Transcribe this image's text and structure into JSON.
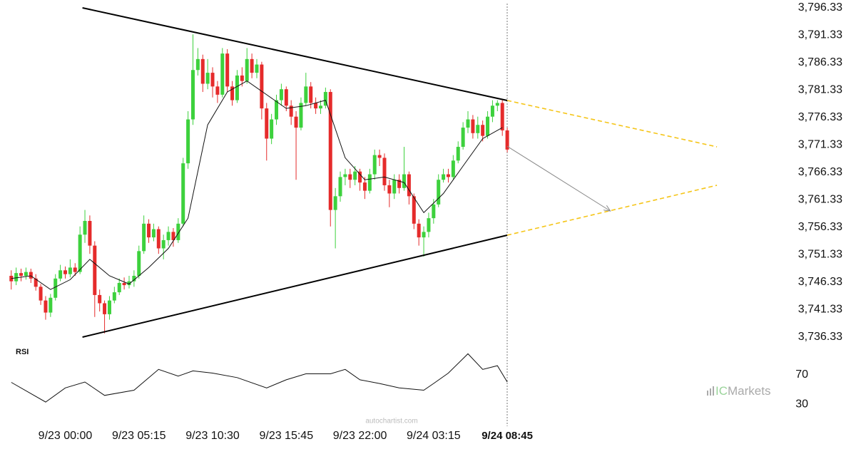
{
  "chart_data": {
    "type": "candlestick",
    "up_color": "#3dd13d",
    "down_color": "#e52b2b",
    "ylim": [
      3736.33,
      3796.33
    ],
    "yticks": [
      {
        "value": 3736.33,
        "label": "3,736.33"
      },
      {
        "value": 3741.33,
        "label": "3,741.33"
      },
      {
        "value": 3746.33,
        "label": "3,746.33"
      },
      {
        "value": 3751.33,
        "label": "3,751.33"
      },
      {
        "value": 3756.33,
        "label": "3,756.33"
      },
      {
        "value": 3761.33,
        "label": "3,761.33"
      },
      {
        "value": 3766.33,
        "label": "3,766.33"
      },
      {
        "value": 3771.33,
        "label": "3,771.33"
      },
      {
        "value": 3776.33,
        "label": "3,776.33"
      },
      {
        "value": 3781.33,
        "label": "3,781.33"
      },
      {
        "value": 3786.33,
        "label": "3,786.33"
      },
      {
        "value": 3791.33,
        "label": "3,791.33"
      },
      {
        "value": 3796.33,
        "label": "3,796.33"
      }
    ],
    "xlim": [
      -2,
      145
    ],
    "xticks": [
      {
        "value": 11,
        "label": "9/23 00:00"
      },
      {
        "value": 26,
        "label": "9/23 05:15"
      },
      {
        "value": 41,
        "label": "9/23 10:30"
      },
      {
        "value": 56,
        "label": "9/23 15:45"
      },
      {
        "value": 71,
        "label": "9/23 22:00"
      },
      {
        "value": 86,
        "label": "9/24 03:15"
      },
      {
        "value": 101,
        "label": "9/24 08:45"
      }
    ],
    "candles": [
      [
        3747.5,
        3748.5,
        3745.0,
        3746.5
      ],
      [
        3746.5,
        3749.0,
        3745.8,
        3748.0
      ],
      [
        3748.0,
        3748.8,
        3746.5,
        3747.5
      ],
      [
        3747.5,
        3749.0,
        3746.8,
        3748.2
      ],
      [
        3748.2,
        3748.8,
        3746.2,
        3747.0
      ],
      [
        3747.0,
        3747.8,
        3744.8,
        3745.5
      ],
      [
        3745.5,
        3746.0,
        3742.2,
        3743.0
      ],
      [
        3743.0,
        3743.8,
        3739.5,
        3740.8
      ],
      [
        3740.8,
        3744.2,
        3740.0,
        3743.5
      ],
      [
        3743.5,
        3747.8,
        3743.0,
        3747.0
      ],
      [
        3747.0,
        3749.5,
        3746.5,
        3748.5
      ],
      [
        3748.5,
        3749.2,
        3747.0,
        3747.8
      ],
      [
        3747.8,
        3750.5,
        3747.2,
        3749.0
      ],
      [
        3749.0,
        3749.8,
        3747.5,
        3748.2
      ],
      [
        3748.2,
        3756.5,
        3747.8,
        3755.0
      ],
      [
        3755.0,
        3759.5,
        3753.5,
        3757.5
      ],
      [
        3757.5,
        3758.5,
        3751.5,
        3753.0
      ],
      [
        3753.0,
        3753.8,
        3740.0,
        3744.0
      ],
      [
        3744.0,
        3745.0,
        3741.0,
        3742.5
      ],
      [
        3742.5,
        3743.0,
        3737.0,
        3740.5
      ],
      [
        3740.5,
        3743.8,
        3739.5,
        3743.0
      ],
      [
        3743.0,
        3745.5,
        3742.5,
        3744.5
      ],
      [
        3744.5,
        3747.0,
        3744.0,
        3746.2
      ],
      [
        3746.2,
        3747.2,
        3745.0,
        3745.8
      ],
      [
        3745.8,
        3747.5,
        3745.2,
        3746.5
      ],
      [
        3746.5,
        3748.5,
        3745.5,
        3747.5
      ],
      [
        3747.5,
        3753.0,
        3747.0,
        3752.0
      ],
      [
        3752.0,
        3758.5,
        3751.5,
        3757.0
      ],
      [
        3757.0,
        3757.8,
        3753.5,
        3754.5
      ],
      [
        3754.5,
        3757.0,
        3753.8,
        3756.0
      ],
      [
        3756.0,
        3756.5,
        3751.5,
        3752.5
      ],
      [
        3752.5,
        3755.0,
        3750.5,
        3754.0
      ],
      [
        3754.0,
        3756.5,
        3753.0,
        3755.5
      ],
      [
        3755.5,
        3756.2,
        3752.8,
        3754.0
      ],
      [
        3754.0,
        3758.0,
        3753.5,
        3757.0
      ],
      [
        3757.0,
        3769.0,
        3756.5,
        3768.0
      ],
      [
        3768.0,
        3777.5,
        3767.0,
        3776.0
      ],
      [
        3776.0,
        3791.5,
        3775.0,
        3785.0
      ],
      [
        3785.0,
        3789.0,
        3784.0,
        3787.0
      ],
      [
        3787.0,
        3787.8,
        3781.0,
        3782.5
      ],
      [
        3782.5,
        3787.0,
        3781.5,
        3784.5
      ],
      [
        3784.5,
        3785.5,
        3780.0,
        3782.0
      ],
      [
        3782.0,
        3783.0,
        3779.0,
        3780.5
      ],
      [
        3780.5,
        3789.0,
        3780.0,
        3788.0
      ],
      [
        3788.0,
        3788.8,
        3781.0,
        3782.0
      ],
      [
        3782.0,
        3783.0,
        3778.5,
        3779.5
      ],
      [
        3779.5,
        3785.0,
        3779.0,
        3784.0
      ],
      [
        3784.0,
        3785.5,
        3782.0,
        3783.0
      ],
      [
        3783.0,
        3789.0,
        3782.5,
        3787.0
      ],
      [
        3787.0,
        3788.0,
        3783.5,
        3784.5
      ],
      [
        3784.5,
        3787.0,
        3783.5,
        3786.0
      ],
      [
        3786.0,
        3786.5,
        3776.0,
        3778.0
      ],
      [
        3778.0,
        3779.0,
        3768.5,
        3772.5
      ],
      [
        3772.5,
        3777.0,
        3771.5,
        3776.0
      ],
      [
        3776.0,
        3780.5,
        3775.0,
        3779.5
      ],
      [
        3779.5,
        3782.5,
        3778.5,
        3781.5
      ],
      [
        3781.5,
        3782.0,
        3777.5,
        3778.5
      ],
      [
        3778.5,
        3779.5,
        3775.0,
        3776.5
      ],
      [
        3776.5,
        3777.5,
        3765.0,
        3774.5
      ],
      [
        3774.5,
        3780.0,
        3774.0,
        3779.0
      ],
      [
        3779.0,
        3784.5,
        3778.5,
        3782.0
      ],
      [
        3782.0,
        3782.8,
        3778.0,
        3779.0
      ],
      [
        3779.0,
        3780.0,
        3777.0,
        3778.0
      ],
      [
        3778.0,
        3779.5,
        3777.0,
        3778.5
      ],
      [
        3778.5,
        3781.8,
        3778.0,
        3781.0
      ],
      [
        3781.0,
        3781.5,
        3756.5,
        3759.5
      ],
      [
        3759.5,
        3763.5,
        3752.5,
        3762.0
      ],
      [
        3762.0,
        3766.5,
        3761.0,
        3765.5
      ],
      [
        3765.5,
        3767.0,
        3764.0,
        3766.0
      ],
      [
        3766.0,
        3767.0,
        3763.5,
        3765.0
      ],
      [
        3765.0,
        3767.5,
        3764.0,
        3766.5
      ],
      [
        3766.5,
        3767.0,
        3763.0,
        3764.5
      ],
      [
        3764.5,
        3765.5,
        3761.5,
        3763.0
      ],
      [
        3763.0,
        3767.0,
        3762.5,
        3766.0
      ],
      [
        3766.0,
        3770.5,
        3765.0,
        3769.5
      ],
      [
        3769.5,
        3770.5,
        3767.5,
        3769.0
      ],
      [
        3769.0,
        3769.8,
        3763.0,
        3764.0
      ],
      [
        3764.0,
        3765.0,
        3760.0,
        3762.5
      ],
      [
        3762.5,
        3766.0,
        3761.5,
        3765.0
      ],
      [
        3765.0,
        3766.0,
        3762.5,
        3763.5
      ],
      [
        3763.5,
        3771.0,
        3763.0,
        3766.0
      ],
      [
        3766.0,
        3766.5,
        3760.5,
        3762.0
      ],
      [
        3762.0,
        3762.5,
        3756.0,
        3757.0
      ],
      [
        3757.0,
        3757.8,
        3753.0,
        3754.5
      ],
      [
        3754.5,
        3756.5,
        3751.0,
        3755.5
      ],
      [
        3755.5,
        3759.0,
        3754.5,
        3758.0
      ],
      [
        3758.0,
        3761.5,
        3757.0,
        3760.5
      ],
      [
        3760.5,
        3766.0,
        3760.0,
        3765.0
      ],
      [
        3765.0,
        3767.0,
        3764.5,
        3766.0
      ],
      [
        3766.0,
        3767.0,
        3764.5,
        3765.5
      ],
      [
        3765.5,
        3769.5,
        3765.0,
        3768.5
      ],
      [
        3768.5,
        3772.0,
        3768.0,
        3771.0
      ],
      [
        3771.0,
        3775.5,
        3770.5,
        3774.5
      ],
      [
        3774.5,
        3777.5,
        3773.5,
        3776.0
      ],
      [
        3776.0,
        3776.8,
        3772.5,
        3773.5
      ],
      [
        3773.5,
        3776.5,
        3772.5,
        3775.0
      ],
      [
        3775.0,
        3775.8,
        3772.0,
        3773.0
      ],
      [
        3773.0,
        3777.5,
        3772.5,
        3776.5
      ],
      [
        3776.5,
        3779.5,
        3775.5,
        3778.5
      ],
      [
        3778.5,
        3779.5,
        3777.5,
        3779.0
      ],
      [
        3779.0,
        3779.5,
        3773.0,
        3774.0
      ],
      [
        3774.0,
        3774.5,
        3770.0,
        3770.5
      ]
    ],
    "moving_average": {
      "color": "#111111",
      "x": [
        0,
        4,
        8,
        12,
        16,
        20,
        24,
        28,
        32,
        36,
        40,
        44,
        48,
        52,
        56,
        60,
        64,
        68,
        72,
        76,
        80,
        84,
        88,
        92,
        96,
        100
      ],
      "values": [
        3747.0,
        3747.5,
        3745.0,
        3746.8,
        3750.5,
        3747.5,
        3746.0,
        3749.0,
        3752.5,
        3758.0,
        3775.0,
        3781.0,
        3783.0,
        3780.5,
        3778.0,
        3778.5,
        3779.5,
        3769.0,
        3765.0,
        3765.5,
        3764.5,
        3759.0,
        3762.5,
        3767.5,
        3772.5,
        3774.5
      ]
    },
    "trendlines": [
      {
        "color": "#000000",
        "dashed": false,
        "x": [
          14.5,
          101
        ],
        "y": [
          3796.33,
          3779.45
        ]
      },
      {
        "color": "#000000",
        "dashed": false,
        "x": [
          14.5,
          101
        ],
        "y": [
          3736.33,
          3754.9
        ]
      },
      {
        "color": "#f5c518",
        "dashed": true,
        "x": [
          101,
          143.7
        ],
        "y": [
          3779.45,
          3771.0
        ]
      },
      {
        "color": "#f5c518",
        "dashed": true,
        "x": [
          101,
          143.7
        ],
        "y": [
          3754.9,
          3764.0
        ]
      },
      {
        "color": "#888888",
        "dashed": false,
        "arrow": true,
        "x": [
          101,
          122
        ],
        "y": [
          3771.1,
          3759.3
        ]
      }
    ],
    "rsi": {
      "title": "RSI",
      "ylim": [
        12,
        108
      ],
      "yticks": [
        30,
        70
      ],
      "x": [
        0,
        7,
        11,
        15,
        19,
        25,
        30,
        34,
        37,
        41,
        46,
        52,
        56,
        60,
        65,
        68,
        71,
        75,
        79,
        84,
        86,
        89,
        93,
        96,
        99,
        101
      ],
      "values": [
        59.5,
        33,
        52,
        60,
        42,
        49,
        77,
        68,
        75,
        72,
        66,
        52,
        63,
        71,
        71,
        77,
        63,
        58,
        52,
        49,
        58,
        72,
        98,
        77,
        82,
        60
      ]
    },
    "watermark": "autochartist.com",
    "logo": {
      "prefix": "IC",
      "suffix": "Markets"
    }
  }
}
